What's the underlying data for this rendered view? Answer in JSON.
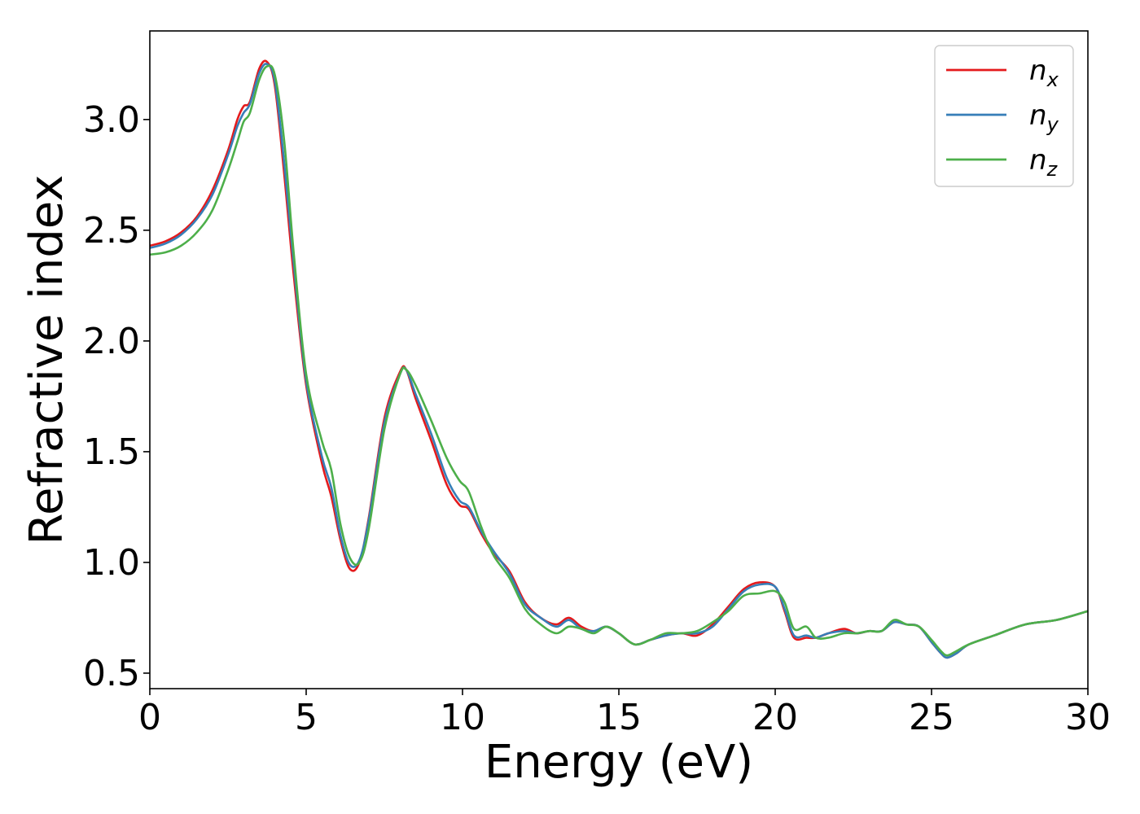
{
  "chart_data": {
    "type": "line",
    "title": "",
    "xlabel": "Energy (eV)",
    "ylabel": "Refractive index",
    "xlim": [
      0,
      30
    ],
    "ylim": [
      0.43,
      3.4
    ],
    "xticks": [
      0,
      5,
      10,
      15,
      20,
      25,
      30
    ],
    "xtick_labels": [
      "0",
      "5",
      "10",
      "15",
      "20",
      "25",
      "30"
    ],
    "yticks": [
      0.5,
      1.0,
      1.5,
      2.0,
      2.5,
      3.0
    ],
    "ytick_labels": [
      "0.5",
      "1.0",
      "1.5",
      "2.0",
      "2.5",
      "3.0"
    ],
    "grid": false,
    "legend_position": "top-right",
    "series": [
      {
        "name": "n_x",
        "label_base": "n",
        "label_sub": "x",
        "color": "#e41a1c",
        "x": [
          0,
          0.5,
          1,
          1.5,
          2,
          2.5,
          2.8,
          3.0,
          3.2,
          3.5,
          3.75,
          4.0,
          4.3,
          4.6,
          5.0,
          5.5,
          5.8,
          6.1,
          6.4,
          6.7,
          7.0,
          7.5,
          8.0,
          8.2,
          8.5,
          9.0,
          9.5,
          9.9,
          10.2,
          10.6,
          11.0,
          11.5,
          12.0,
          12.5,
          13.0,
          13.4,
          13.8,
          14.2,
          14.6,
          15.0,
          15.5,
          16.0,
          16.5,
          17.0,
          17.5,
          18.0,
          18.5,
          19.0,
          19.5,
          20.0,
          20.3,
          20.6,
          21.0,
          21.3,
          21.7,
          22.2,
          22.6,
          23.0,
          23.4,
          23.8,
          24.2,
          24.6,
          25.0,
          25.3,
          25.5,
          25.8,
          26.2,
          27.0,
          28.0,
          29.0,
          30.0
        ],
        "values": [
          2.43,
          2.45,
          2.49,
          2.56,
          2.68,
          2.86,
          3.0,
          3.06,
          3.08,
          3.23,
          3.26,
          3.15,
          2.75,
          2.3,
          1.8,
          1.45,
          1.3,
          1.1,
          0.97,
          1.0,
          1.2,
          1.65,
          1.86,
          1.87,
          1.74,
          1.55,
          1.35,
          1.26,
          1.24,
          1.13,
          1.04,
          0.96,
          0.82,
          0.75,
          0.72,
          0.75,
          0.71,
          0.69,
          0.71,
          0.68,
          0.63,
          0.65,
          0.67,
          0.68,
          0.67,
          0.72,
          0.8,
          0.88,
          0.91,
          0.89,
          0.78,
          0.66,
          0.66,
          0.66,
          0.68,
          0.7,
          0.68,
          0.69,
          0.69,
          0.73,
          0.72,
          0.71,
          0.64,
          0.59,
          0.57,
          0.59,
          0.63,
          0.67,
          0.72,
          0.74,
          0.78
        ]
      },
      {
        "name": "n_y",
        "label_base": "n",
        "label_sub": "y",
        "color": "#377eb8",
        "x": [
          0,
          0.5,
          1,
          1.5,
          2,
          2.5,
          2.8,
          3.0,
          3.2,
          3.5,
          3.75,
          4.0,
          4.3,
          4.6,
          5.0,
          5.5,
          5.8,
          6.1,
          6.4,
          6.7,
          7.0,
          7.5,
          8.0,
          8.2,
          8.5,
          9.0,
          9.5,
          9.9,
          10.2,
          10.6,
          11.0,
          11.5,
          12.0,
          12.5,
          13.0,
          13.4,
          13.8,
          14.2,
          14.6,
          15.0,
          15.5,
          16.0,
          16.5,
          17.0,
          17.5,
          18.0,
          18.5,
          19.0,
          19.5,
          20.0,
          20.3,
          20.6,
          21.0,
          21.3,
          21.7,
          22.2,
          22.6,
          23.0,
          23.4,
          23.8,
          24.2,
          24.6,
          25.0,
          25.3,
          25.5,
          25.8,
          26.2,
          27.0,
          28.0,
          29.0,
          30.0
        ],
        "values": [
          2.42,
          2.44,
          2.48,
          2.55,
          2.66,
          2.84,
          2.97,
          3.03,
          3.07,
          3.21,
          3.25,
          3.17,
          2.8,
          2.35,
          1.82,
          1.48,
          1.34,
          1.12,
          0.99,
          1.01,
          1.19,
          1.63,
          1.85,
          1.87,
          1.76,
          1.58,
          1.38,
          1.28,
          1.25,
          1.14,
          1.05,
          0.95,
          0.81,
          0.75,
          0.71,
          0.74,
          0.7,
          0.69,
          0.71,
          0.68,
          0.63,
          0.65,
          0.67,
          0.68,
          0.68,
          0.71,
          0.79,
          0.87,
          0.9,
          0.89,
          0.79,
          0.67,
          0.67,
          0.66,
          0.68,
          0.69,
          0.68,
          0.69,
          0.69,
          0.73,
          0.72,
          0.71,
          0.64,
          0.59,
          0.57,
          0.59,
          0.63,
          0.67,
          0.72,
          0.74,
          0.78
        ]
      },
      {
        "name": "n_z",
        "label_base": "n",
        "label_sub": "z",
        "color": "#4daf4a",
        "x": [
          0,
          0.5,
          1,
          1.5,
          2,
          2.5,
          2.8,
          3.0,
          3.2,
          3.5,
          3.75,
          4.0,
          4.3,
          4.6,
          5.0,
          5.5,
          5.8,
          6.1,
          6.4,
          6.7,
          7.0,
          7.5,
          8.0,
          8.2,
          8.5,
          9.0,
          9.5,
          9.9,
          10.2,
          10.6,
          11.0,
          11.5,
          12.0,
          12.5,
          13.0,
          13.4,
          13.8,
          14.2,
          14.6,
          15.0,
          15.5,
          16.0,
          16.5,
          17.0,
          17.5,
          18.0,
          18.5,
          19.0,
          19.5,
          20.0,
          20.3,
          20.6,
          21.0,
          21.3,
          21.7,
          22.2,
          22.6,
          23.0,
          23.4,
          23.8,
          24.2,
          24.6,
          25.0,
          25.3,
          25.5,
          25.8,
          26.2,
          27.0,
          28.0,
          29.0,
          30.0
        ],
        "values": [
          2.39,
          2.4,
          2.43,
          2.49,
          2.59,
          2.77,
          2.9,
          2.99,
          3.03,
          3.18,
          3.24,
          3.2,
          2.9,
          2.4,
          1.85,
          1.55,
          1.42,
          1.17,
          1.02,
          1.0,
          1.15,
          1.6,
          1.85,
          1.87,
          1.8,
          1.64,
          1.47,
          1.37,
          1.32,
          1.16,
          1.03,
          0.93,
          0.79,
          0.72,
          0.68,
          0.71,
          0.7,
          0.68,
          0.71,
          0.68,
          0.63,
          0.65,
          0.68,
          0.68,
          0.69,
          0.73,
          0.78,
          0.85,
          0.86,
          0.87,
          0.82,
          0.7,
          0.71,
          0.66,
          0.66,
          0.68,
          0.68,
          0.69,
          0.69,
          0.74,
          0.72,
          0.71,
          0.65,
          0.6,
          0.58,
          0.6,
          0.63,
          0.67,
          0.72,
          0.74,
          0.78
        ]
      }
    ]
  }
}
